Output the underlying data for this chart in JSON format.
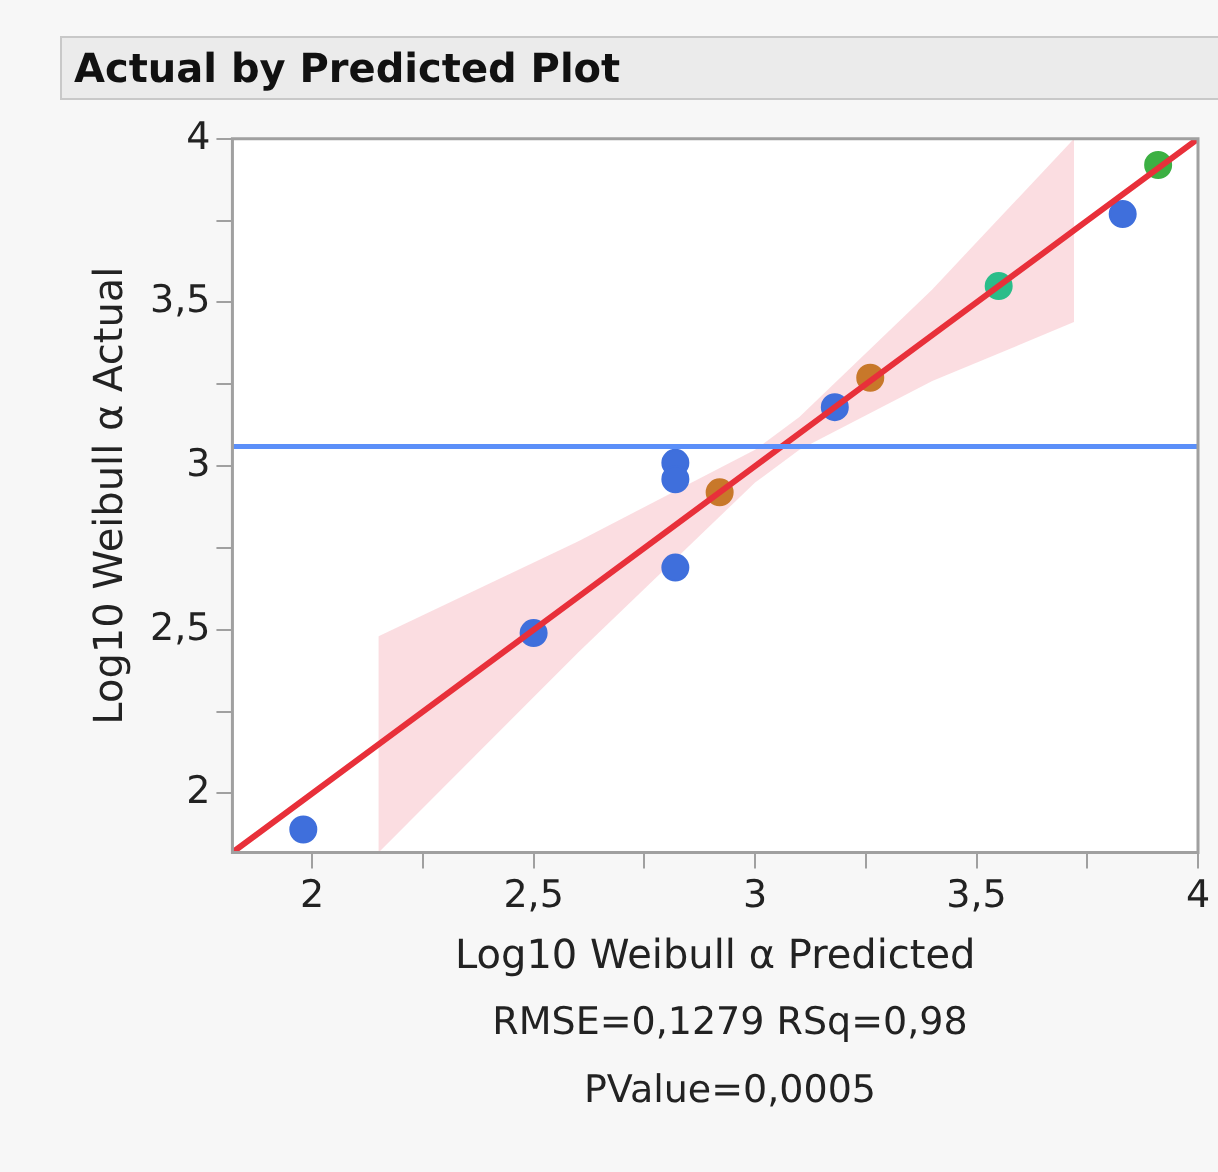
{
  "chart_data": {
    "type": "scatter",
    "title": "Actual by Predicted Plot",
    "xlabel": "Log10 Weibull α Predicted",
    "ylabel": "Log10 Weibull α Actual",
    "annotations": [
      "RMSE=0,1279 RSq=0,98",
      "PValue=0,0005"
    ],
    "xlim": [
      1.82,
      4
    ],
    "ylim": [
      1.82,
      4
    ],
    "xticks": [
      2,
      {
        "value": 2.25,
        "label": null
      },
      {
        "value": 2.5,
        "label": "2,5"
      },
      {
        "value": 2.75,
        "label": null
      },
      3,
      {
        "value": 3.25,
        "label": null
      },
      {
        "value": 3.5,
        "label": "3,5"
      },
      {
        "value": 3.75,
        "label": null
      },
      4
    ],
    "yticks": [
      2,
      {
        "value": 2.25,
        "label": null
      },
      {
        "value": 2.5,
        "label": "2,5"
      },
      {
        "value": 2.75,
        "label": null
      },
      3,
      {
        "value": 3.25,
        "label": null
      },
      {
        "value": 3.5,
        "label": "3,5"
      },
      {
        "value": 3.75,
        "label": null
      },
      4
    ],
    "marker": "circle",
    "ref_lines": [
      {
        "axis": "y",
        "value": 3.06,
        "color": "#5b8ff9"
      }
    ],
    "series": [
      {
        "type": "line",
        "color": "#e8303a",
        "marker": "none",
        "x": [
          1.82,
          2.15,
          2.6,
          3.0,
          3.1,
          3.4,
          3.72,
          4.0
        ],
        "values": [
          1.82,
          2.15,
          2.6,
          3.0,
          3.1,
          3.4,
          3.72,
          4.0
        ],
        "lower": [
          null,
          1.82,
          2.43,
          2.95,
          3.05,
          3.26,
          3.44,
          null
        ],
        "upper": [
          null,
          2.48,
          2.77,
          3.05,
          3.15,
          3.54,
          4.0,
          null
        ]
      },
      {
        "type": "scatter",
        "x": [
          1.98,
          2.5,
          2.82,
          2.82,
          2.82,
          2.92,
          3.18,
          3.26,
          3.55,
          3.83,
          3.91
        ],
        "values": [
          1.89,
          2.49,
          2.69,
          3.01,
          2.96,
          2.92,
          3.18,
          3.27,
          3.55,
          3.77,
          3.92
        ],
        "colors": [
          "#3f6fdc",
          "#3f6fdc",
          "#3f6fdc",
          "#3f6fdc",
          "#3f6fdc",
          "#c8782a",
          "#3f6fdc",
          "#c8782a",
          "#2bbd8a",
          "#3f6fdc",
          "#3cb043"
        ]
      }
    ]
  }
}
